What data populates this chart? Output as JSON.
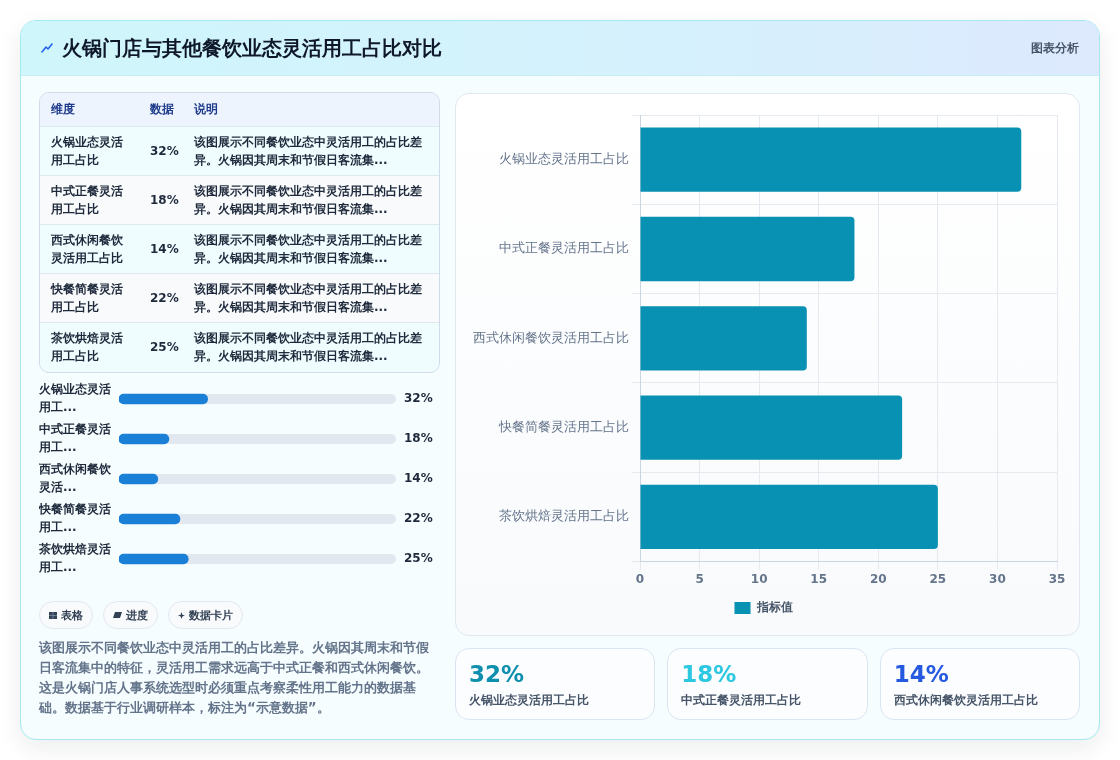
{
  "chart_data": [
    {
      "type": "other",
      "title": "火锅门店与其他餐饮业态灵活用工占比对比",
      "annotations": [
        "图表分析"
      ]
    },
    {
      "type": "other",
      "categories": [
        "火锅业态灵活用工占比",
        "中式正餐灵活用工占比",
        "西式休闲餐饮灵活用工占比",
        "快餐简餐灵活用工占比",
        "茶饮烘焙灵活用工占比"
      ],
      "values": [
        32,
        18,
        14,
        22,
        25
      ],
      "value_labels": [
        "32%",
        "18%",
        "14%",
        "22%",
        "25%"
      ],
      "annotations": [
        "维度",
        "数据",
        "说明",
        "该图展示不同餐饮业态中灵活用工的占比差异。火锅因其周末和节假日客流集...",
        "该图展示不同餐饮业态中灵活用工的占比差异。火锅因其周末和节假日客流集...",
        "该图展示不同餐饮业态中灵活用工的占比差异。火锅因其周末和节假日客流集...",
        "该图展示不同餐饮业态中灵活用工的占比差异。火锅因其周末和节假日客流集...",
        "该图展示不同餐饮业态中灵活用工的占比差异。火锅因其周末和节假日客流集..."
      ]
    },
    {
      "type": "bar",
      "orientation": "horizontal",
      "categories": [
        "火锅业态灵活用工...",
        "中式正餐灵活用工...",
        "西式休闲餐饮灵活...",
        "快餐简餐灵活用工...",
        "茶饮烘焙灵活用工..."
      ],
      "values": [
        32,
        18,
        14,
        22,
        25
      ],
      "value_labels": [
        "32%",
        "18%",
        "14%",
        "22%",
        "25%"
      ],
      "color": "#1a7fd6",
      "xlim": [
        0,
        100
      ],
      "tick_labels": "y"
    },
    {
      "type": "other",
      "annotations": [
        "表格",
        "进度",
        "数据卡片",
        "该图展示不同餐饮业态中灵活用工的占比差异。火锅因其周末和节假日客流集中的特征，灵活用工需求远高于中式正餐和西式休闲餐饮。这是火锅门店人事系统选型时必须重点考察柔性用工能力的数据基础。数据基于行业调研样本，标注为“示意数据”。"
      ]
    },
    {
      "type": "bar",
      "orientation": "horizontal",
      "categories": [
        "火锅业态灵活用工占比",
        "中式正餐灵活用工占比",
        "西式休闲餐饮灵活用工占比",
        "快餐简餐灵活用工占比",
        "茶饮烘焙灵活用工占比"
      ],
      "series": [
        {
          "name": "指标值",
          "color": "#0891b2",
          "values": [
            32,
            18,
            14,
            22,
            25
          ]
        }
      ],
      "xlim": [
        0,
        35
      ],
      "xticks": [
        0,
        5,
        10,
        15,
        20,
        25,
        30,
        35
      ],
      "grid": true,
      "legend": "bottom"
    },
    {
      "type": "other",
      "categories": [
        "火锅业态灵活用工占比",
        "中式正餐灵活用工占比",
        "西式休闲餐饮灵活用工占比"
      ],
      "values": [
        32,
        18,
        14
      ],
      "value_labels": [
        "32%",
        "18%",
        "14%"
      ]
    }
  ]
}
